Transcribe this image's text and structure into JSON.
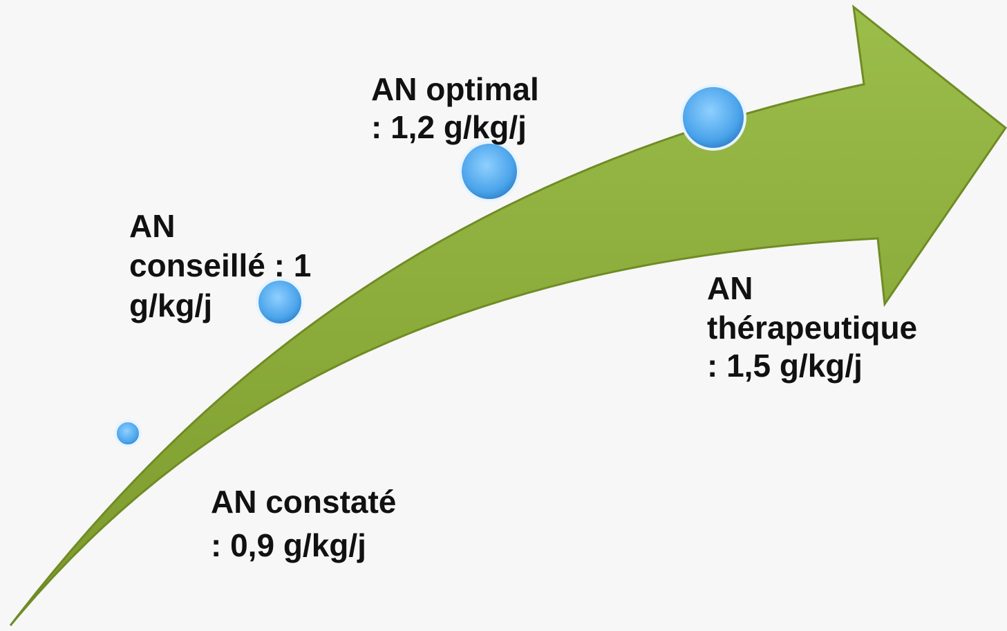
{
  "nodes": [
    {
      "lines": [
        "AN constaté",
        ": 0,9 g/kg/j"
      ]
    },
    {
      "lines": [
        "AN",
        "conseillé : 1",
        "g/kg/j"
      ]
    },
    {
      "lines": [
        "AN optimal",
        ": 1,2 g/kg/j"
      ]
    },
    {
      "lines": [
        "AN",
        "thérapeutique",
        ": 1,5 g/kg/j"
      ]
    }
  ]
}
